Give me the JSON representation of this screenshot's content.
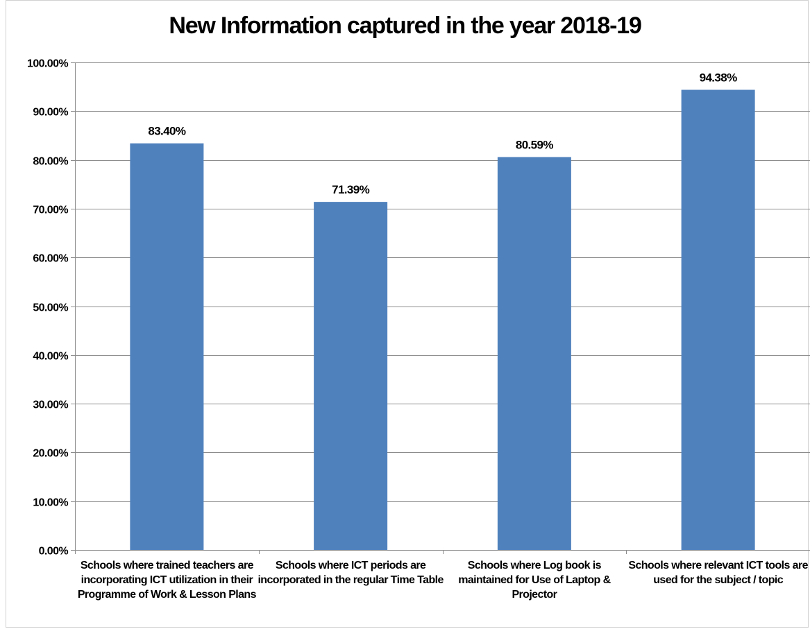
{
  "chart_data": {
    "type": "bar",
    "title": "New Information captured in the year 2018-19",
    "xlabel": "",
    "ylabel": "",
    "ylim": [
      0,
      1.0
    ],
    "yticks": [
      "0.00%",
      "10.00%",
      "20.00%",
      "30.00%",
      "40.00%",
      "50.00%",
      "60.00%",
      "70.00%",
      "80.00%",
      "90.00%",
      "100.00%"
    ],
    "grid": true,
    "legend": "none",
    "bar_color": "#4F81BD",
    "categories": [
      "Schools where trained teachers are incorporating ICT utilization in their Programme of Work & Lesson Plans",
      "Schools where ICT periods are incorporated in the regular Time Table",
      "Schools where Log book is maintained for Use of Laptop & Projector",
      "Schools where relevant ICT tools are used for the subject / topic"
    ],
    "values": [
      0.834,
      0.7139,
      0.8059,
      0.9438
    ],
    "data_labels": [
      "83.40%",
      "71.39%",
      "80.59%",
      "94.38%"
    ]
  }
}
